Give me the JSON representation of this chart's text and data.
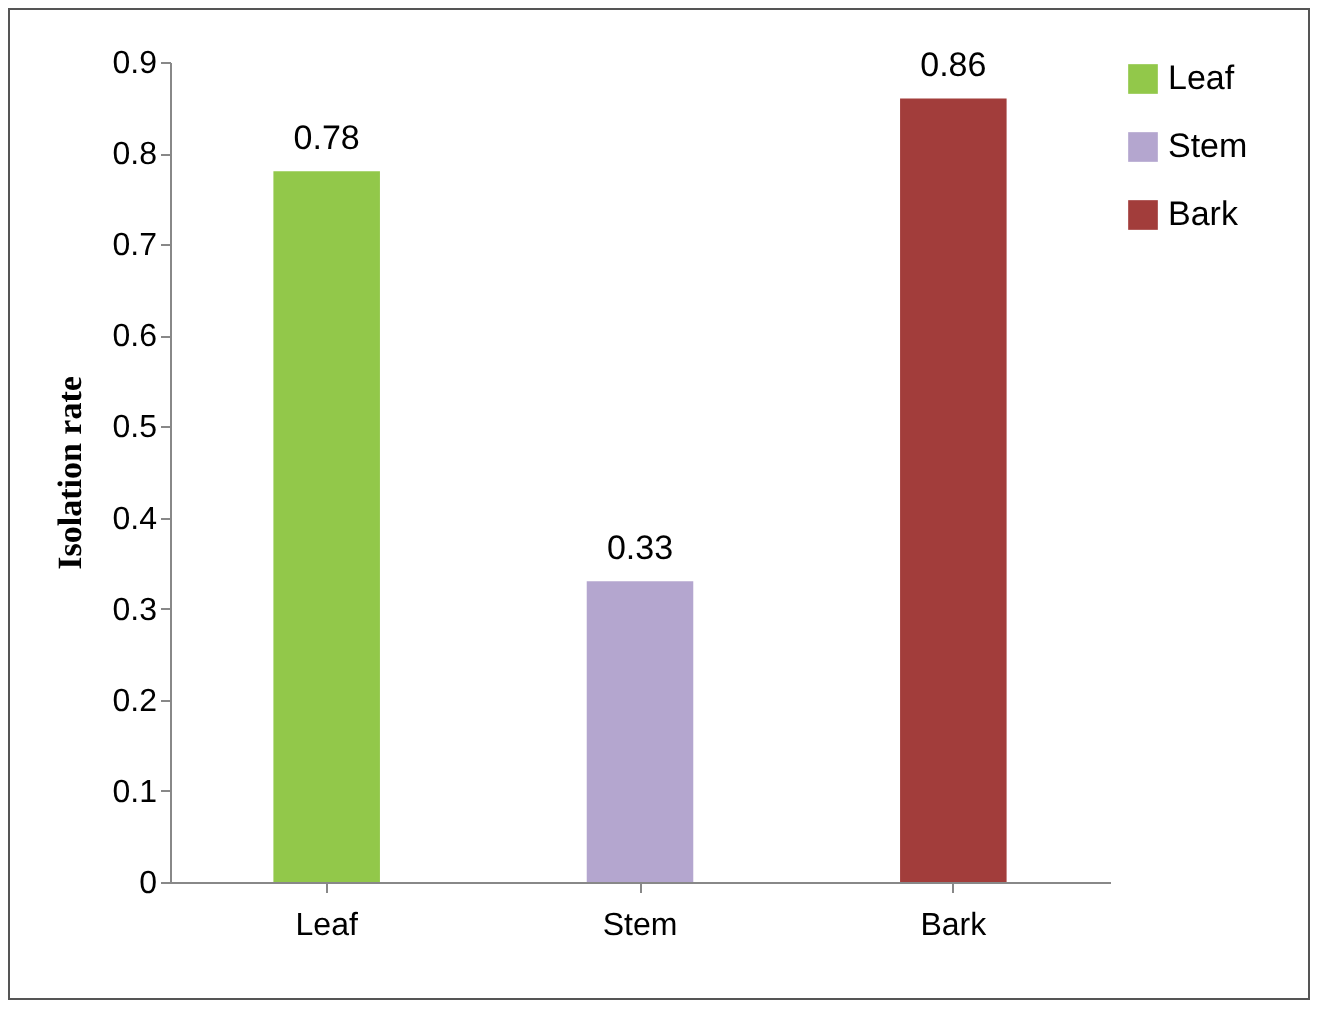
{
  "chart_data": {
    "type": "bar",
    "ylabel": "Isolation rate",
    "categories": [
      "Leaf",
      "Stem",
      "Bark"
    ],
    "series": [
      {
        "name": "Leaf",
        "color": "#92c84a",
        "values": [
          0.78,
          null,
          null
        ]
      },
      {
        "name": "Stem",
        "color": "#b4a6cf",
        "values": [
          null,
          0.33,
          null
        ]
      },
      {
        "name": "Bark",
        "color": "#a23d3b",
        "values": [
          null,
          null,
          0.86
        ]
      }
    ],
    "ylim": [
      0,
      0.9
    ],
    "yticks": [
      0,
      0.1,
      0.2,
      0.3,
      0.4,
      0.5,
      0.6,
      0.7,
      0.8,
      0.9
    ],
    "data_labels": true,
    "legend": "right"
  }
}
